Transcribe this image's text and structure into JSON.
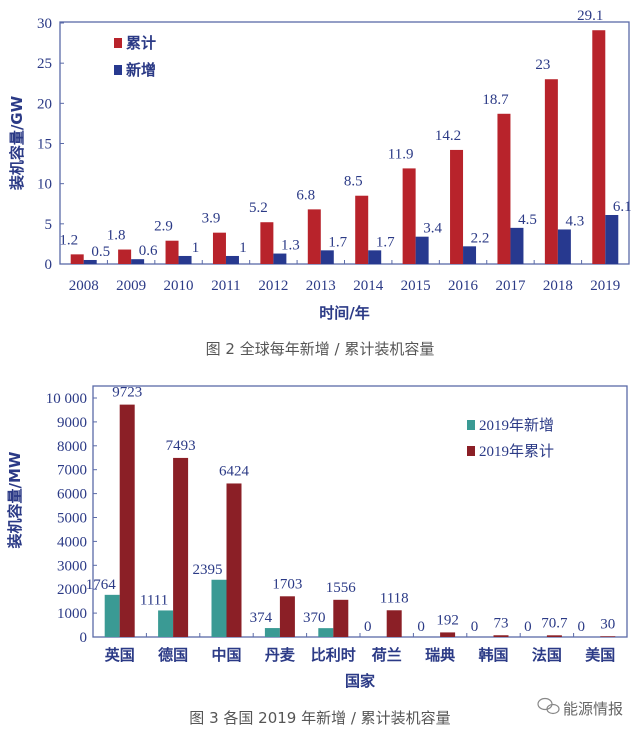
{
  "chart_data": [
    {
      "type": "bar",
      "title": "图 2 全球每年新增 / 累计装机容量",
      "xlabel": "时间/年",
      "ylabel": "装机容量/GW",
      "ylim": [
        0,
        30
      ],
      "yticks": [
        "0",
        "5",
        "10",
        "15",
        "20",
        "25",
        "30"
      ],
      "ytick_values": [
        0,
        5,
        10,
        15,
        20,
        25,
        30
      ],
      "legend_position": "top-left",
      "categories": [
        "2008",
        "2009",
        "2010",
        "2011",
        "2012",
        "2013",
        "2014",
        "2015",
        "2016",
        "2017",
        "2018",
        "2019"
      ],
      "series": [
        {
          "name": "累计",
          "color": "#b8232b",
          "values": [
            1.2,
            1.8,
            2.9,
            3.9,
            5.2,
            6.8,
            8.5,
            11.9,
            14.2,
            18.7,
            23,
            29.1
          ],
          "labels": [
            "1.2",
            "1.8",
            "2.9",
            "3.9",
            "5.2",
            "6.8",
            "8.5",
            "11.9",
            "14.2",
            "18.7",
            "23",
            "29.1"
          ]
        },
        {
          "name": "新增",
          "color": "#27398f",
          "values": [
            0.5,
            0.6,
            1,
            1,
            1.3,
            1.7,
            1.7,
            3.4,
            2.2,
            4.5,
            4.3,
            6.1
          ],
          "labels": [
            "0.5",
            "0.6",
            "1",
            "1",
            "1.3",
            "1.7",
            "1.7",
            "3.4",
            "2.2",
            "4.5",
            "4.3",
            "6.1"
          ]
        }
      ]
    },
    {
      "type": "bar",
      "title": "图 3 各国 2019 年新增 / 累计装机容量",
      "xlabel": "国家",
      "ylabel": "装机容量/MW",
      "ylim": [
        0,
        10000
      ],
      "yticks": [
        "0",
        "1000",
        "2000",
        "3000",
        "4000",
        "5000",
        "6000",
        "7000",
        "8000",
        "9000",
        "10 000"
      ],
      "ytick_values": [
        0,
        1000,
        2000,
        3000,
        4000,
        5000,
        6000,
        7000,
        8000,
        9000,
        10000
      ],
      "legend_position": "top-right",
      "categories": [
        "英国",
        "德国",
        "中国",
        "丹麦",
        "比利时",
        "荷兰",
        "瑞典",
        "韩国",
        "法国",
        "美国"
      ],
      "series": [
        {
          "name": "2019年新增",
          "color": "#3a9a94",
          "values": [
            1764,
            1111,
            2395,
            374,
            370,
            0,
            0,
            0,
            0,
            0
          ],
          "labels": [
            "1764",
            "1111",
            "2395",
            "374",
            "370",
            "0",
            "0",
            "0",
            "0",
            "0"
          ]
        },
        {
          "name": "2019年累计",
          "color": "#8b1f26",
          "values": [
            9723,
            7493,
            6424,
            1703,
            1556,
            1118,
            192,
            73,
            70.7,
            30
          ],
          "labels": [
            "9723",
            "7493",
            "6424",
            "1703",
            "1556",
            "1118",
            "192",
            "73",
            "70.7",
            "30"
          ]
        }
      ]
    }
  ],
  "watermark": "能源情报"
}
